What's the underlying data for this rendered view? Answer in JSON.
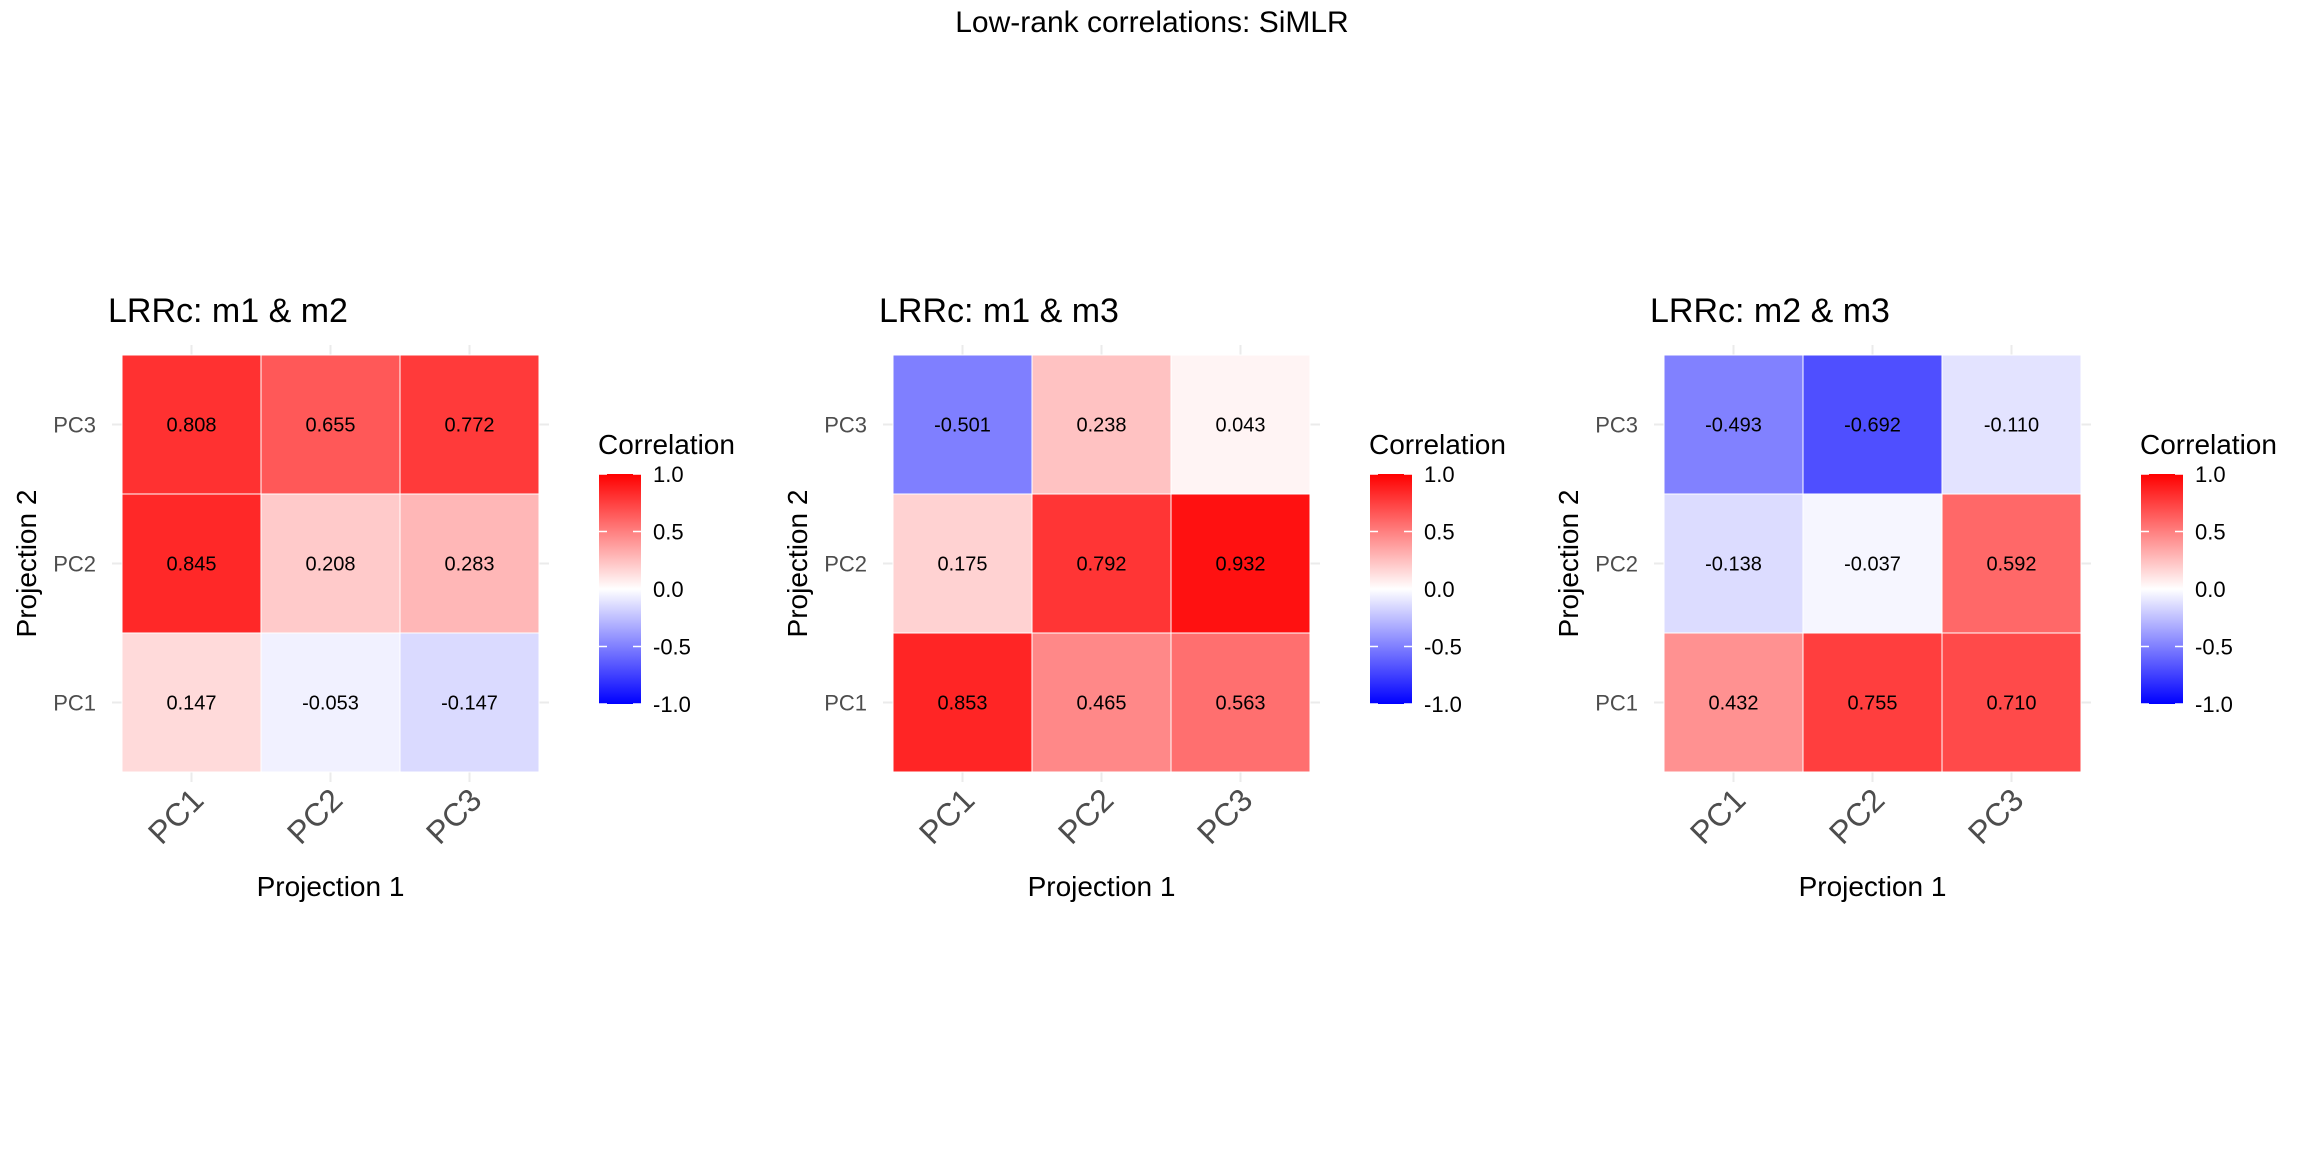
{
  "figure_title": "Low-rank correlations: SiMLR",
  "colors": {
    "low": "#0000ff",
    "mid": "#ffffff",
    "high": "#ff0000",
    "grid": "#ebebeb"
  },
  "chart_data": [
    {
      "type": "heatmap",
      "title": "LRRc:  m1  &  m2",
      "xlabel": "Projection 1",
      "ylabel": "Projection 2",
      "x_categories": [
        "PC1",
        "PC2",
        "PC3"
      ],
      "y_categories": [
        "PC1",
        "PC2",
        "PC3"
      ],
      "values": [
        [
          0.147,
          -0.053,
          -0.147
        ],
        [
          0.845,
          0.208,
          0.283
        ],
        [
          0.808,
          0.655,
          0.772
        ]
      ],
      "labels": [
        [
          "0.147",
          "-0.053",
          "-0.147"
        ],
        [
          "0.845",
          "0.208",
          "0.283"
        ],
        [
          "0.808",
          "0.655",
          "0.772"
        ]
      ],
      "legend": {
        "title": "Correlation",
        "range": [
          -1,
          1
        ],
        "ticks": [
          "1.0",
          "0.5",
          "0.0",
          "-0.5",
          "-1.0"
        ],
        "placement": "right"
      }
    },
    {
      "type": "heatmap",
      "title": "LRRc:  m1  &  m3",
      "xlabel": "Projection 1",
      "ylabel": "Projection 2",
      "x_categories": [
        "PC1",
        "PC2",
        "PC3"
      ],
      "y_categories": [
        "PC1",
        "PC2",
        "PC3"
      ],
      "values": [
        [
          0.853,
          0.465,
          0.563
        ],
        [
          0.175,
          0.792,
          0.932
        ],
        [
          -0.501,
          0.238,
          0.043
        ]
      ],
      "labels": [
        [
          "0.853",
          "0.465",
          "0.563"
        ],
        [
          "0.175",
          "0.792",
          "0.932"
        ],
        [
          "-0.501",
          "0.238",
          "0.043"
        ]
      ],
      "legend": {
        "title": "Correlation",
        "range": [
          -1,
          1
        ],
        "ticks": [
          "1.0",
          "0.5",
          "0.0",
          "-0.5",
          "-1.0"
        ],
        "placement": "right"
      }
    },
    {
      "type": "heatmap",
      "title": "LRRc:  m2  &  m3",
      "xlabel": "Projection 1",
      "ylabel": "Projection 2",
      "x_categories": [
        "PC1",
        "PC2",
        "PC3"
      ],
      "y_categories": [
        "PC1",
        "PC2",
        "PC3"
      ],
      "values": [
        [
          0.432,
          0.755,
          0.71
        ],
        [
          -0.138,
          -0.037,
          0.592
        ],
        [
          -0.493,
          -0.692,
          -0.11
        ]
      ],
      "labels": [
        [
          "0.432",
          "0.755",
          "0.710"
        ],
        [
          "-0.138",
          "-0.037",
          "0.592"
        ],
        [
          "-0.493",
          "-0.692",
          "-0.110"
        ]
      ],
      "legend": {
        "title": "Correlation",
        "range": [
          -1,
          1
        ],
        "ticks": [
          "1.0",
          "0.5",
          "0.0",
          "-0.5",
          "-1.0"
        ],
        "placement": "right"
      }
    }
  ]
}
